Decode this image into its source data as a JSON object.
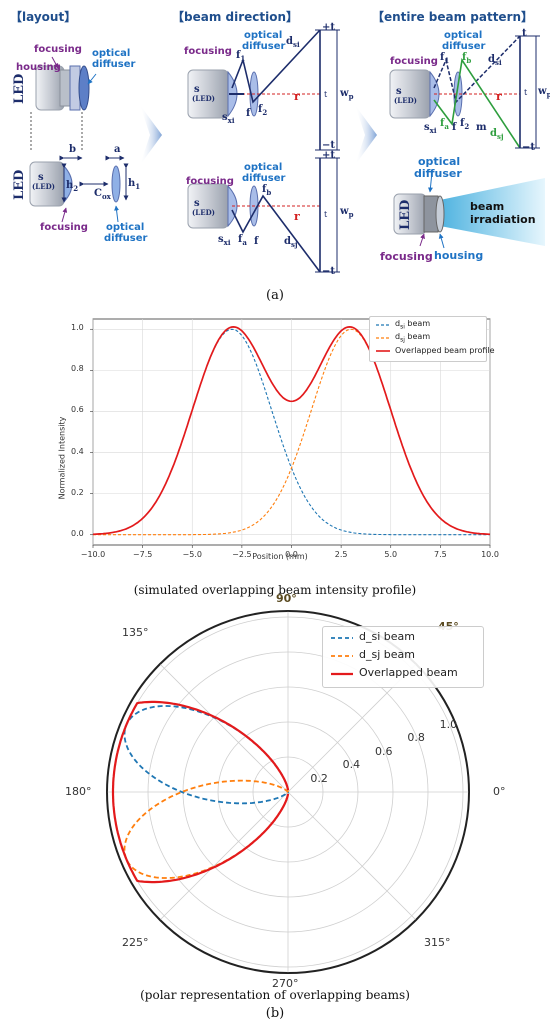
{
  "panel_a": {
    "headers": {
      "layout": "【layout】",
      "beam_direction": "【beam direction】",
      "entire_beam_pattern": "【entire beam pattern】"
    },
    "labels": {
      "focusing": "focusing",
      "housing": "housing",
      "optical": "optical",
      "diffuser": "diffuser",
      "led": "LED",
      "s": "s",
      "led_small": "(LED)",
      "b": "b",
      "a": "a",
      "h2": "h",
      "h2_sub": "2",
      "h1": "h",
      "h1_sub": "1",
      "cox": "C",
      "cox_sub": "ox",
      "f1": "f",
      "f1_sub": "1",
      "f2": "f",
      "f2_sub": "2",
      "f": "f",
      "fa": "f",
      "fa_sub": "a",
      "fb": "f",
      "fb_sub": "b",
      "sxi": "s",
      "sxi_sub": "xi",
      "dsi": "d",
      "dsi_sub": "si",
      "dsj": "d",
      "dsj_sub": "sj",
      "r": "r",
      "t": "t",
      "plus_t": "+t",
      "minus_t": "−t",
      "wp": "w",
      "wp_sub": "p",
      "m": "m",
      "beam": "beam",
      "irradiation": "irradiation"
    },
    "caption": "(a)"
  },
  "chart_data": [
    {
      "type": "line",
      "title": "",
      "xlabel": "Position (mm)",
      "ylabel": "Normalized Intensity",
      "xlim": [
        -10,
        10
      ],
      "ylim": [
        0,
        1
      ],
      "xticks": [
        "−10.0",
        "−7.5",
        "−5.0",
        "−2.5",
        "0.0",
        "2.5",
        "5.0",
        "7.5",
        "10.0"
      ],
      "yticks": [
        "0.0",
        "0.2",
        "0.4",
        "0.6",
        "0.8",
        "1.0"
      ],
      "grid": true,
      "legend_position": "top-right",
      "series": [
        {
          "name": "d_si beam",
          "name_base": "d",
          "name_sub": "si",
          "name_tail": " beam",
          "style": "dashed",
          "color": "#1f77b4",
          "center": -3,
          "sigma": 2
        },
        {
          "name": "d_sj beam",
          "name_base": "d",
          "name_sub": "sj",
          "name_tail": " beam",
          "style": "dashed",
          "color": "#ff7f0e",
          "center": 3,
          "sigma": 2
        },
        {
          "name": "Overlapped beam profile",
          "style": "solid",
          "color": "#e31a1c"
        }
      ],
      "caption": "(simulated overlapping beam intensity profile)"
    },
    {
      "type": "polar",
      "title": "",
      "angle_labels": [
        "0°",
        "45°",
        "90°",
        "135°",
        "180°",
        "225°",
        "270°",
        "315°"
      ],
      "radial_ticks": [
        "0.2",
        "0.4",
        "0.6",
        "0.8",
        "1.0"
      ],
      "rlim": [
        0,
        1
      ],
      "legend_position": "top-right",
      "series": [
        {
          "name": "d_si beam",
          "style": "dashed",
          "color": "#1f77b4",
          "center_deg": 157.5
        },
        {
          "name": "d_sj beam",
          "style": "dashed",
          "color": "#ff7f0e",
          "center_deg": 202.5
        },
        {
          "name": "Overlapped beam",
          "style": "solid",
          "color": "#e31a1c"
        }
      ],
      "caption": "(polar representation of overlapping beams)"
    }
  ],
  "caption_b": "(b)"
}
